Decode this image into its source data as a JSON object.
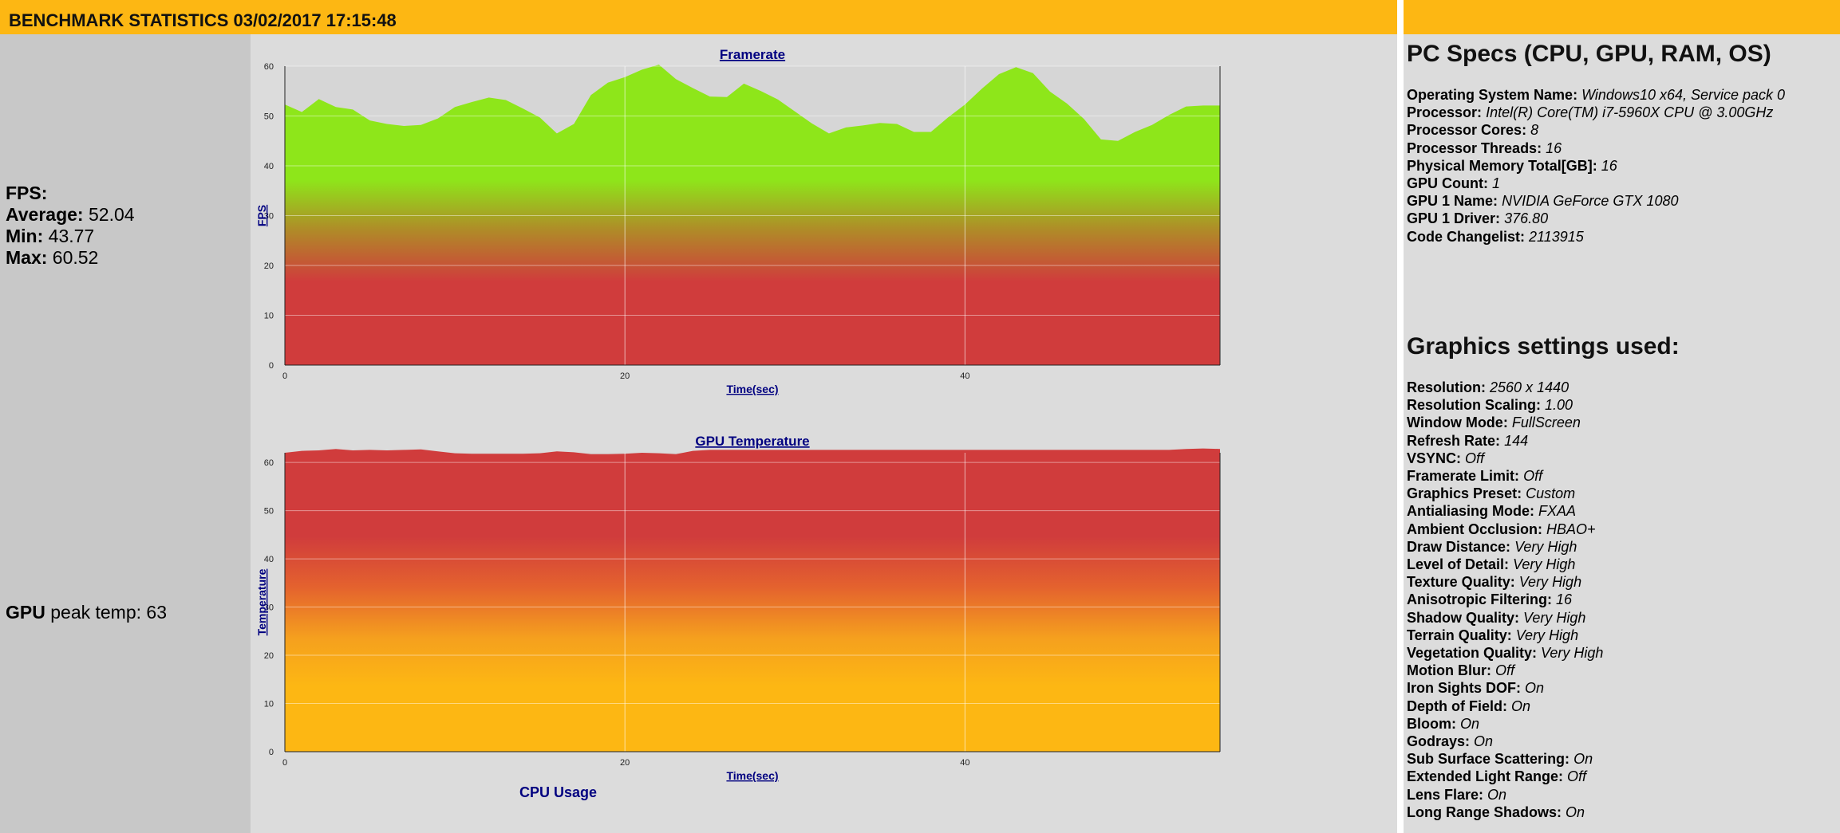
{
  "header": {
    "title": "BENCHMARK STATISTICS 03/02/2017 17:15:48"
  },
  "fps_stats": {
    "heading": "FPS:",
    "average_label": "Average:",
    "average": "52.04",
    "min_label": "Min:",
    "min": "43.77",
    "max_label": "Max:",
    "max": "60.52"
  },
  "gpu_stats": {
    "bold": "GPU",
    "text": "peak temp:",
    "value": "63"
  },
  "pc_specs": {
    "title": "PC Specs (CPU, GPU, RAM, OS)",
    "items": [
      {
        "label": "Operating System Name:",
        "value": "Windows10 x64, Service pack 0"
      },
      {
        "label": "Processor:",
        "value": "Intel(R) Core(TM) i7-5960X CPU @ 3.00GHz"
      },
      {
        "label": "Processor Cores:",
        "value": "8"
      },
      {
        "label": "Processor Threads:",
        "value": "16"
      },
      {
        "label": "Physical Memory Total[GB]:",
        "value": "16"
      },
      {
        "label": "GPU Count:",
        "value": "1"
      },
      {
        "label": "GPU 1 Name:",
        "value": "NVIDIA GeForce GTX 1080"
      },
      {
        "label": "GPU 1 Driver:",
        "value": "376.80"
      },
      {
        "label": "Code Changelist:",
        "value": "2113915"
      }
    ]
  },
  "graphics_settings": {
    "title": "Graphics settings used:",
    "items": [
      {
        "label": "Resolution:",
        "value": "2560 x 1440"
      },
      {
        "label": "Resolution Scaling:",
        "value": "1.00"
      },
      {
        "label": "Window Mode:",
        "value": "FullScreen"
      },
      {
        "label": "Refresh Rate:",
        "value": "144"
      },
      {
        "label": "VSYNC:",
        "value": "Off"
      },
      {
        "label": "Framerate Limit:",
        "value": "Off"
      },
      {
        "label": "Graphics Preset:",
        "value": "Custom"
      },
      {
        "label": "Antialiasing Mode:",
        "value": "FXAA"
      },
      {
        "label": "Ambient Occlusion:",
        "value": "HBAO+"
      },
      {
        "label": "Draw Distance:",
        "value": "Very High"
      },
      {
        "label": "Level of Detail:",
        "value": "Very High"
      },
      {
        "label": "Texture Quality:",
        "value": "Very High"
      },
      {
        "label": "Anisotropic Filtering:",
        "value": "16"
      },
      {
        "label": "Shadow Quality:",
        "value": "Very High"
      },
      {
        "label": "Terrain Quality:",
        "value": "Very High"
      },
      {
        "label": "Vegetation Quality:",
        "value": "Very High"
      },
      {
        "label": "Motion Blur:",
        "value": "Off"
      },
      {
        "label": "Iron Sights DOF:",
        "value": "On"
      },
      {
        "label": "Depth of Field:",
        "value": "On"
      },
      {
        "label": "Bloom:",
        "value": "On"
      },
      {
        "label": "Godrays:",
        "value": "On"
      },
      {
        "label": "Sub Surface Scattering:",
        "value": "On"
      },
      {
        "label": "Extended Light Range:",
        "value": "Off"
      },
      {
        "label": "Lens Flare:",
        "value": "On"
      },
      {
        "label": "Long Range Shadows:",
        "value": "On"
      }
    ]
  },
  "cpu_chart": {
    "title": "CPU Usage"
  },
  "colors": {
    "header": "#fdb713",
    "green": "#8ee61a",
    "red": "#d03c3c",
    "orange": "#fdb713",
    "axis_text": "#000080"
  },
  "chart_data": [
    {
      "type": "area",
      "title": "Framerate",
      "xlabel": "Time(sec)",
      "ylabel": "FPS",
      "xlim": [
        0,
        55
      ],
      "ylim": [
        0,
        60
      ],
      "xticks": [
        0,
        20,
        40
      ],
      "yticks": [
        0,
        10,
        20,
        30,
        40,
        50,
        60
      ],
      "grid": true,
      "fill": "gradient green (high) to red (low)",
      "x": [
        0,
        1,
        2,
        3,
        4,
        5,
        6,
        7,
        8,
        9,
        10,
        11,
        12,
        13,
        14,
        15,
        16,
        17,
        18,
        19,
        20,
        21,
        22,
        23,
        24,
        25,
        26,
        27,
        28,
        29,
        30,
        31,
        32,
        33,
        34,
        35,
        36,
        37,
        38,
        39,
        40,
        41,
        42,
        43,
        44,
        45,
        46,
        47,
        48,
        49,
        50,
        51,
        52,
        53,
        54,
        55
      ],
      "values": [
        52.3,
        50.8,
        53.4,
        51.8,
        51.3,
        49.1,
        48.4,
        48.0,
        48.2,
        49.5,
        51.8,
        52.8,
        53.7,
        53.2,
        51.5,
        49.7,
        46.5,
        48.4,
        54.2,
        56.7,
        57.8,
        59.3,
        60.3,
        57.4,
        55.6,
        53.9,
        53.8,
        56.5,
        55.0,
        53.3,
        50.9,
        48.5,
        46.5,
        47.7,
        48.1,
        48.6,
        48.4,
        46.8,
        46.8,
        49.7,
        52.3,
        55.5,
        58.4,
        59.8,
        58.6,
        54.9,
        52.5,
        49.4,
        45.3,
        45.0,
        46.8,
        48.2,
        50.2,
        51.9,
        52.1,
        52.1
      ]
    },
    {
      "type": "area",
      "title": "GPU Temperature",
      "xlabel": "Time(sec)",
      "ylabel": "Temperature",
      "xlim": [
        0,
        55
      ],
      "ylim": [
        0,
        62
      ],
      "xticks": [
        0,
        20,
        40
      ],
      "yticks": [
        0,
        10,
        20,
        30,
        40,
        50,
        60
      ],
      "grid": true,
      "fill": "gradient red (high) to orange (low)",
      "x": [
        0,
        1,
        2,
        3,
        4,
        5,
        6,
        7,
        8,
        9,
        10,
        11,
        12,
        13,
        14,
        15,
        16,
        17,
        18,
        19,
        20,
        21,
        22,
        23,
        24,
        25,
        26,
        27,
        28,
        29,
        30,
        31,
        32,
        33,
        34,
        35,
        36,
        37,
        38,
        39,
        40,
        41,
        42,
        43,
        44,
        45,
        46,
        47,
        48,
        49,
        50,
        51,
        52,
        53,
        54,
        55
      ],
      "values": [
        62.0,
        62.4,
        62.5,
        62.8,
        62.5,
        62.6,
        62.5,
        62.6,
        62.7,
        62.3,
        61.9,
        61.8,
        61.8,
        61.8,
        61.8,
        61.9,
        62.3,
        62.1,
        61.7,
        61.7,
        61.8,
        62.0,
        61.9,
        61.7,
        62.4,
        62.6,
        62.6,
        62.6,
        62.6,
        62.6,
        62.6,
        62.6,
        62.6,
        62.6,
        62.6,
        62.6,
        62.6,
        62.6,
        62.6,
        62.6,
        62.6,
        62.6,
        62.6,
        62.6,
        62.6,
        62.6,
        62.6,
        62.6,
        62.6,
        62.6,
        62.6,
        62.6,
        62.6,
        62.8,
        62.9,
        62.8
      ]
    }
  ]
}
